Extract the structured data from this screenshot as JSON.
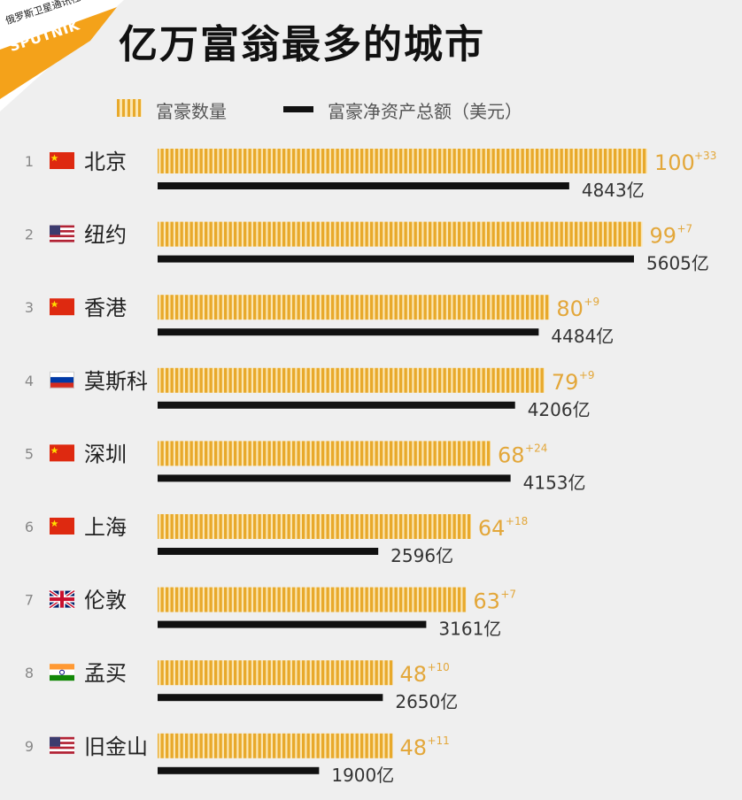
{
  "logo": {
    "cn_text": "俄罗斯卫星通讯社",
    "brand": "SPUTNIK"
  },
  "title": "亿万富翁最多的城市",
  "legend": {
    "count_label": "富豪数量",
    "worth_label": "富豪净资产总额（美元）"
  },
  "colors": {
    "gold": "#e8a92b",
    "gold_light": "#fbe6b2",
    "worth_bar": "#111111",
    "count_text": "#e3a73a",
    "logo_orange": "#f4a21a"
  },
  "chart_data": {
    "type": "bar",
    "series": [
      {
        "name": "富豪数量",
        "values": [
          100,
          99,
          80,
          79,
          68,
          64,
          63,
          48,
          48
        ]
      },
      {
        "name": "富豪净资产总额（美元）",
        "values": [
          4843,
          5605,
          4484,
          4206,
          4153,
          2596,
          3161,
          2650,
          1900
        ]
      }
    ],
    "rows": [
      {
        "rank": "1",
        "flag": "china-flag",
        "city": "北京",
        "count": 100,
        "change": "+33",
        "worth": 4843,
        "worth_label": "4843亿"
      },
      {
        "rank": "2",
        "flag": "usa-flag",
        "city": "纽约",
        "count": 99,
        "change": "+7",
        "worth": 5605,
        "worth_label": "5605亿"
      },
      {
        "rank": "3",
        "flag": "china-flag",
        "city": "香港",
        "count": 80,
        "change": "+9",
        "worth": 4484,
        "worth_label": "4484亿"
      },
      {
        "rank": "4",
        "flag": "russia-flag",
        "city": "莫斯科",
        "count": 79,
        "change": "+9",
        "worth": 4206,
        "worth_label": "4206亿"
      },
      {
        "rank": "5",
        "flag": "china-flag",
        "city": "深圳",
        "count": 68,
        "change": "+24",
        "worth": 4153,
        "worth_label": "4153亿"
      },
      {
        "rank": "6",
        "flag": "china-flag",
        "city": "上海",
        "count": 64,
        "change": "+18",
        "worth": 2596,
        "worth_label": "2596亿"
      },
      {
        "rank": "7",
        "flag": "uk-flag",
        "city": "伦敦",
        "count": 63,
        "change": "+7",
        "worth": 3161,
        "worth_label": "3161亿"
      },
      {
        "rank": "8",
        "flag": "india-flag",
        "city": "孟买",
        "count": 48,
        "change": "+10",
        "worth": 2650,
        "worth_label": "2650亿"
      },
      {
        "rank": "9",
        "flag": "usa-flag",
        "city": "旧金山",
        "count": 48,
        "change": "+11",
        "worth": 1900,
        "worth_label": "1900亿"
      }
    ]
  }
}
